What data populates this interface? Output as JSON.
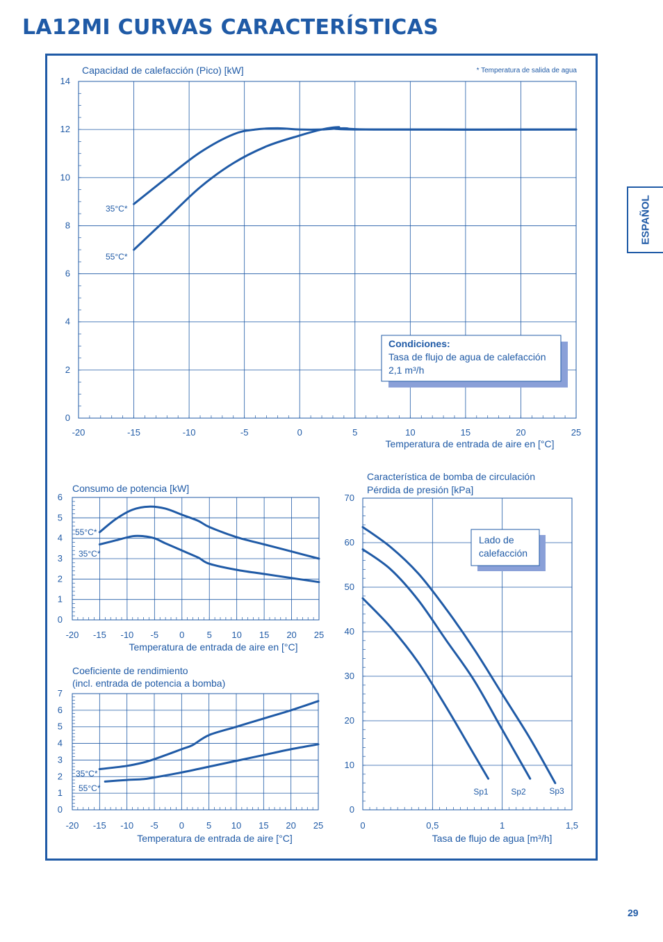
{
  "page": {
    "title": "LA12MI CURVAS CARACTERÍSTICAS",
    "language_tab": "ESPAÑOL",
    "page_number": "29",
    "accent_color": "#1f5aa6",
    "grid_color": "#1f5aa6",
    "shadow_color": "#8aa0d8"
  },
  "chart_data": [
    {
      "id": "heating",
      "type": "line",
      "title": "Capacidad de calefacción (Pico) [kW]",
      "note": "* Temperatura de salida de agua",
      "xlabel": "Temperatura de entrada de aire en [°C]",
      "xlim": [
        -20,
        25
      ],
      "ylim": [
        0,
        14
      ],
      "x_ticks": [
        "-20",
        "-15",
        "-10",
        "-5",
        "0",
        "5",
        "10",
        "15",
        "20",
        "25"
      ],
      "y_ticks": [
        "0",
        "2",
        "4",
        "6",
        "8",
        "10",
        "12",
        "14"
      ],
      "grid": true,
      "legend_box": {
        "heading": "Condiciones:",
        "line1": "Tasa de flujo de agua de calefacción",
        "line2": "2,1 m³/h"
      },
      "series": [
        {
          "name": "35°C*",
          "x": [
            -15,
            -12,
            -9,
            -6,
            -4,
            -2,
            0,
            2,
            4,
            7,
            25
          ],
          "y": [
            8.9,
            10.0,
            11.05,
            11.8,
            12.0,
            12.05,
            12.0,
            12.0,
            12.05,
            12.0,
            12.0
          ]
        },
        {
          "name": "55°C*",
          "x": [
            -15,
            -12,
            -9,
            -6,
            -3,
            0,
            2,
            3.5,
            5,
            25
          ],
          "y": [
            7.0,
            8.3,
            9.6,
            10.6,
            11.3,
            11.75,
            12.0,
            12.1,
            12.0,
            12.0
          ]
        }
      ]
    },
    {
      "id": "power",
      "type": "line",
      "title": "Consumo de potencia  [kW]",
      "xlabel": "Temperatura de entrada de aire en [°C]",
      "xlim": [
        -20,
        25
      ],
      "ylim": [
        0,
        6
      ],
      "x_ticks": [
        "-20",
        "-15",
        "-10",
        "-5",
        "0",
        "5",
        "10",
        "15",
        "20",
        "25"
      ],
      "y_ticks": [
        "0",
        "1",
        "2",
        "3",
        "4",
        "5",
        "6"
      ],
      "grid": true,
      "series": [
        {
          "name": "55°C*",
          "x": [
            -15,
            -12,
            -9,
            -6,
            -3,
            0,
            3,
            5,
            10,
            15,
            20,
            25
          ],
          "y": [
            4.3,
            4.95,
            5.4,
            5.55,
            5.45,
            5.15,
            4.85,
            4.55,
            4.05,
            3.7,
            3.35,
            3.0
          ]
        },
        {
          "name": "35°C*",
          "x": [
            -15,
            -12,
            -9,
            -7,
            -5,
            -3,
            0,
            3,
            5,
            10,
            15,
            20,
            25
          ],
          "y": [
            3.7,
            3.9,
            4.1,
            4.1,
            4.0,
            3.75,
            3.4,
            3.05,
            2.75,
            2.45,
            2.25,
            2.05,
            1.85
          ]
        }
      ]
    },
    {
      "id": "cop",
      "type": "line",
      "title": "Coeficiente de rendimiento",
      "subtitle": "(incl. entrada de potencia a bomba)",
      "xlabel": "Temperatura de entrada de aire [°C]",
      "xlim": [
        -20,
        25
      ],
      "ylim": [
        0,
        7
      ],
      "x_ticks": [
        "-20",
        "-15",
        "-10",
        "-5",
        "0",
        "5",
        "10",
        "15",
        "20",
        "25"
      ],
      "y_ticks": [
        "0",
        "1",
        "2",
        "3",
        "4",
        "5",
        "6",
        "7"
      ],
      "grid": true,
      "series": [
        {
          "name": "35°C*",
          "x": [
            -15,
            -10,
            -7,
            -5,
            0,
            2,
            5,
            10,
            15,
            20,
            25
          ],
          "y": [
            2.45,
            2.65,
            2.85,
            3.05,
            3.65,
            3.9,
            4.5,
            5.0,
            5.5,
            6.0,
            6.55
          ]
        },
        {
          "name": "55°C*",
          "x": [
            -14,
            -10,
            -7,
            -5,
            0,
            5,
            10,
            15,
            20,
            25
          ],
          "y": [
            1.7,
            1.8,
            1.85,
            1.95,
            2.25,
            2.6,
            2.95,
            3.3,
            3.65,
            3.95
          ]
        }
      ]
    },
    {
      "id": "pump",
      "type": "line",
      "title": "Característica de bomba de circulación",
      "subtitle": "Pérdida de presión [kPa]",
      "xlabel": "Tasa de flujo de agua [m³/h]",
      "xlim": [
        0,
        1.5
      ],
      "ylim": [
        0,
        70
      ],
      "x_ticks": [
        "0",
        "0,5",
        "1",
        "1,5"
      ],
      "y_ticks": [
        "0",
        "10",
        "20",
        "30",
        "40",
        "50",
        "60",
        "70"
      ],
      "grid": true,
      "legend_box": {
        "line1": "Lado de",
        "line2": "calefacción"
      },
      "series": [
        {
          "name": "Sp1",
          "x": [
            0,
            0.2,
            0.4,
            0.6,
            0.75,
            0.9
          ],
          "y": [
            47.5,
            41,
            33,
            23,
            15,
            7
          ]
        },
        {
          "name": "Sp2",
          "x": [
            0,
            0.2,
            0.4,
            0.6,
            0.8,
            1.0,
            1.2
          ],
          "y": [
            58.5,
            54,
            47,
            38,
            29,
            18,
            7
          ]
        },
        {
          "name": "Sp3",
          "x": [
            0,
            0.2,
            0.4,
            0.6,
            0.8,
            1.0,
            1.2,
            1.38
          ],
          "y": [
            63.5,
            59,
            53,
            45,
            36,
            26,
            16,
            6
          ]
        }
      ]
    }
  ]
}
